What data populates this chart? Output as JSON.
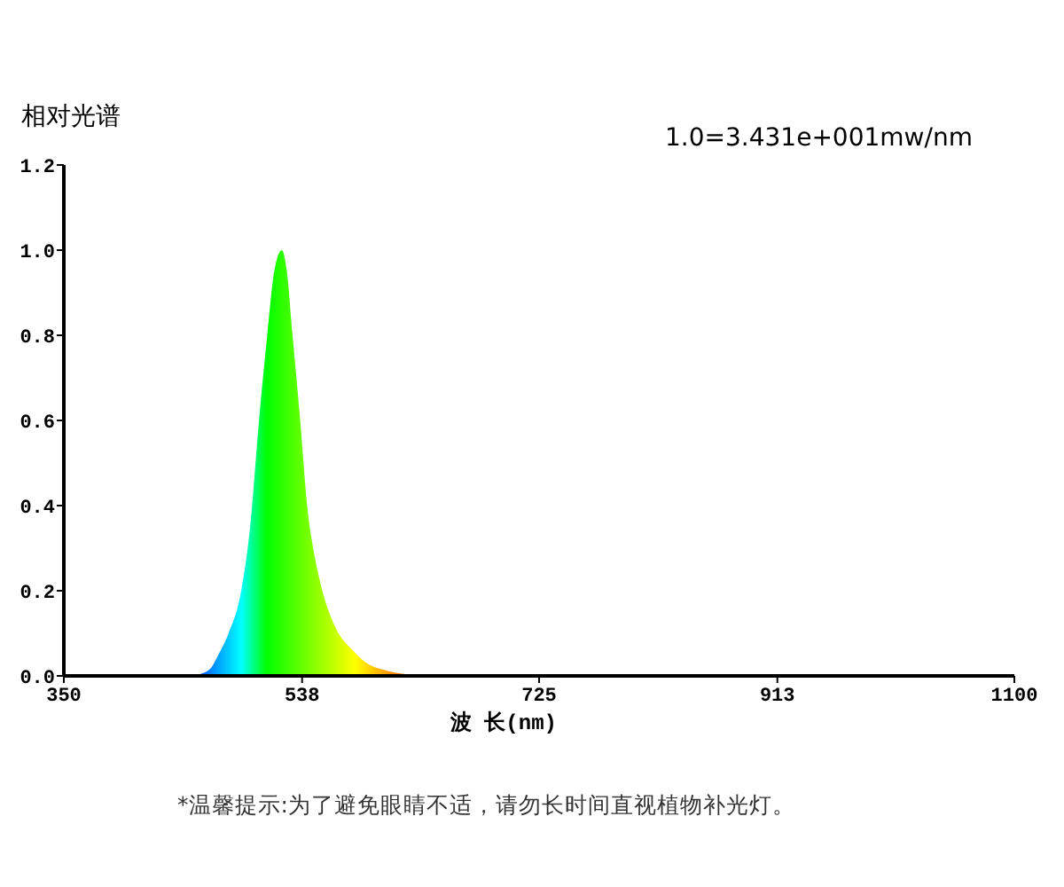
{
  "chart_data": {
    "type": "area",
    "ylabel": "相对光谱",
    "xlabel": "波 长(nm)",
    "annotations": [
      "1.0=3.431e+001mw/nm",
      "*温馨提示:为了避免眼睛不适，请勿长时间直视植物补光灯。"
    ],
    "x": [
      350,
      440,
      455,
      465,
      472,
      480,
      490,
      497,
      504,
      510.5,
      516,
      522,
      526,
      530.5,
      536.5,
      542,
      548,
      554,
      565,
      578,
      589,
      605,
      626,
      640,
      1100
    ],
    "values": [
      0,
      0,
      0.003,
      0.015,
      0.05,
      0.1,
      0.2,
      0.35,
      0.6,
      0.8,
      0.95,
      1.0,
      0.95,
      0.8,
      0.6,
      0.4,
      0.28,
      0.2,
      0.11,
      0.06,
      0.03,
      0.012,
      0.002,
      0,
      0
    ],
    "xlim": [
      350,
      1100
    ],
    "xticks": [
      350,
      538,
      725,
      913,
      1100
    ],
    "ylim": [
      0,
      1.2
    ],
    "yticks": [
      {
        "value": 0,
        "label": "0.0"
      },
      {
        "value": 0.2,
        "label": "0.2"
      },
      {
        "value": 0.4,
        "label": "0.4"
      },
      {
        "value": 0.6,
        "label": "0.6"
      },
      {
        "value": 0.8,
        "label": "0.8"
      },
      {
        "value": 1,
        "label": "1.0"
      },
      {
        "value": 1.2,
        "label": "1.2"
      }
    ],
    "grid": false
  }
}
